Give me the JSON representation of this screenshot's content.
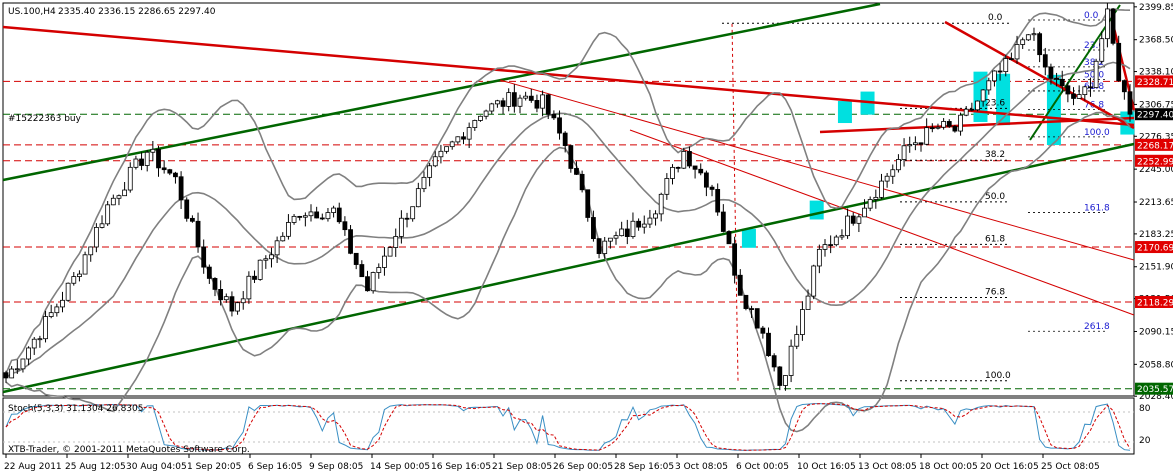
{
  "window": {
    "title": "US.100,H4",
    "ohlc": "2335.40 2336.15 2286.65 2297.40",
    "order_label": "#15222363 buy",
    "copyright": "XTB-Trader, © 2001-2011 MetaQuotes Software Corp."
  },
  "stoch": {
    "label": "Stoch(5,3,3) 31.1304 26.8305",
    "levels": [
      "80",
      "20"
    ]
  },
  "chart_data": {
    "type": "candlestick",
    "symbol": "US.100",
    "timeframe": "H4",
    "ylim": [
      2028.6,
      2403.5
    ],
    "y_ticks": [
      "2399.85",
      "2368.50",
      "2338.10",
      "2306.75",
      "2276.35",
      "2245.00",
      "2213.65",
      "2183.25",
      "2151.90",
      "2121.50",
      "2090.15",
      "2058.80",
      "2028.40"
    ],
    "x_ticks": [
      "22 Aug 2011",
      "25 Aug 12:05",
      "30 Aug 04:05",
      "1 Sep 20:05",
      "6 Sep 16:05",
      "9 Sep 08:05",
      "14 Sep 00:05",
      "16 Sep 16:05",
      "21 Sep 08:05",
      "26 Sep 00:05",
      "28 Sep 16:05",
      "3 Oct 08:05",
      "6 Oct 00:05",
      "10 Oct 16:05",
      "13 Oct 08:05",
      "18 Oct 00:05",
      "20 Oct 16:05",
      "25 Oct 08:05"
    ],
    "price_tags": [
      {
        "value": 2328.71,
        "label": "2328.71",
        "bg": "#e00000"
      },
      {
        "value": 2297.4,
        "label": "2297.40",
        "bg": "#000000"
      },
      {
        "value": 2268.17,
        "label": "2268.17",
        "bg": "#e00000"
      },
      {
        "value": 2252.99,
        "label": "2252.99",
        "bg": "#e00000"
      },
      {
        "value": 2170.69,
        "label": "2170.69",
        "bg": "#e00000"
      },
      {
        "value": 2118.29,
        "label": "2118.29",
        "bg": "#e00000"
      },
      {
        "value": 2035.57,
        "label": "2035.57",
        "bg": "#006600"
      }
    ],
    "fib_main": [
      {
        "label": "0.0",
        "value": 2384.2
      },
      {
        "label": "23.6",
        "value": 2303.0
      },
      {
        "label": "38.2",
        "value": 2253.5
      },
      {
        "label": "50.0",
        "value": 2213.8
      },
      {
        "label": "61.8",
        "value": 2173.2
      },
      {
        "label": "76.8",
        "value": 2122.6
      },
      {
        "label": "100.0",
        "value": 2043.1
      }
    ],
    "fib_blue": [
      {
        "label": "0.0",
        "value": 2387.3
      },
      {
        "label": "23.6",
        "value": 2358.7
      },
      {
        "label": "38.2",
        "value": 2342.6
      },
      {
        "label": "50.0",
        "value": 2330.5
      },
      {
        "label": "61.8",
        "value": 2319.6
      },
      {
        "label": "76.8",
        "value": 2301.8
      },
      {
        "label": "100.0",
        "value": 2275.8
      },
      {
        "label": "161.8",
        "value": 2203.7
      },
      {
        "label": "261.8",
        "value": 2090.4
      }
    ],
    "colors": {
      "bullish_body": "#ffffff",
      "bearish_body": "#000000",
      "bollinger": "#808080",
      "channel": "#006600",
      "trend": "#d40000",
      "horizontal_levels": "#d40000",
      "highlight": "#00e0e0",
      "stoch_main": "#3a8fc4",
      "stoch_signal": "#d40000"
    }
  }
}
